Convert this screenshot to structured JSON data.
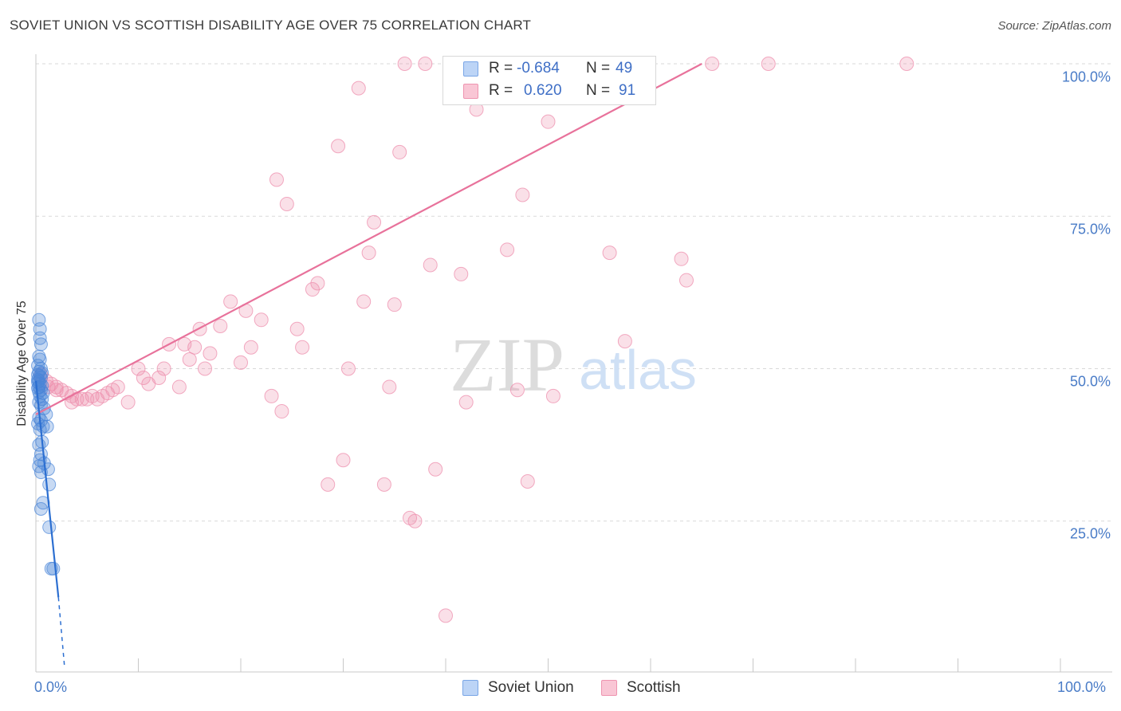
{
  "title": "SOVIET UNION VS SCOTTISH DISABILITY AGE OVER 75 CORRELATION CHART",
  "source": "Source: ZipAtlas.com",
  "watermark": {
    "zip": "ZIP",
    "atlas": "atlas"
  },
  "legend_top": {
    "rows": [
      {
        "r_label": "R =",
        "r_value": "-0.684",
        "n_label": "N =",
        "n_value": "49",
        "color": "#7aa6e6"
      },
      {
        "r_label": "R =",
        "r_value": "0.620",
        "n_label": "N =",
        "n_value": "91",
        "color": "#ee94b0"
      }
    ]
  },
  "legend_bottom": {
    "series1": "Soviet Union",
    "series2": "Scottish"
  },
  "chart_data": {
    "type": "scatter",
    "ylabel": "Disability Age Over 75",
    "xlabel": "",
    "x_tick_labels": {
      "left": "0.0%",
      "right": "100.0%"
    },
    "y_tick_labels": [
      "100.0%",
      "75.0%",
      "50.0%",
      "25.0%"
    ],
    "xlim": [
      0,
      100
    ],
    "ylim": [
      0,
      100
    ],
    "grid": true,
    "colors": {
      "soviet": "#4a86d8",
      "scottish": "#ee8fad",
      "soviet_line": "#2c6fd1",
      "scottish_line": "#e8729b",
      "tick": "#4a7cc7"
    },
    "series": [
      {
        "name": "Soviet Union",
        "trend": {
          "x0": 0,
          "y0": 48.0,
          "x1": 2.2,
          "y1": 12.5,
          "dash_to_x": 2.8,
          "dash_to_y": 1.0
        },
        "points": [
          [
            0.3,
            58.0
          ],
          [
            0.4,
            56.5
          ],
          [
            0.4,
            55.0
          ],
          [
            0.5,
            54.0
          ],
          [
            0.3,
            52.0
          ],
          [
            0.4,
            51.5
          ],
          [
            0.2,
            50.5
          ],
          [
            0.5,
            50.0
          ],
          [
            0.3,
            49.5
          ],
          [
            0.2,
            49.0
          ],
          [
            0.4,
            48.8
          ],
          [
            0.5,
            48.5
          ],
          [
            0.3,
            48.0
          ],
          [
            0.2,
            47.8
          ],
          [
            0.4,
            47.5
          ],
          [
            0.6,
            47.2
          ],
          [
            0.3,
            47.0
          ],
          [
            0.2,
            46.8
          ],
          [
            0.5,
            46.5
          ],
          [
            0.3,
            46.2
          ],
          [
            0.7,
            46.0
          ],
          [
            0.4,
            45.5
          ],
          [
            0.6,
            45.0
          ],
          [
            0.3,
            44.5
          ],
          [
            0.5,
            44.0
          ],
          [
            0.8,
            43.5
          ],
          [
            1.0,
            42.5
          ],
          [
            0.3,
            42.0
          ],
          [
            0.5,
            41.5
          ],
          [
            0.2,
            41.0
          ],
          [
            0.7,
            40.5
          ],
          [
            1.1,
            40.5
          ],
          [
            0.4,
            40.0
          ],
          [
            0.6,
            38.0
          ],
          [
            0.3,
            37.5
          ],
          [
            0.5,
            36.0
          ],
          [
            0.4,
            35.0
          ],
          [
            0.8,
            34.5
          ],
          [
            0.3,
            34.0
          ],
          [
            1.2,
            33.5
          ],
          [
            0.5,
            33.0
          ],
          [
            1.3,
            31.0
          ],
          [
            0.7,
            28.0
          ],
          [
            0.5,
            27.0
          ],
          [
            1.3,
            24.0
          ],
          [
            1.5,
            17.2
          ],
          [
            1.7,
            17.2
          ],
          [
            0.2,
            48.2
          ],
          [
            0.6,
            49.3
          ]
        ]
      },
      {
        "name": "Scottish",
        "trend": {
          "x0": 0,
          "y0": 42.5,
          "x1": 65.0,
          "y1": 100.0
        },
        "points": [
          [
            0.5,
            49.0
          ],
          [
            1.0,
            48.0
          ],
          [
            1.5,
            47.5
          ],
          [
            2.0,
            47.0
          ],
          [
            2.5,
            46.5
          ],
          [
            3.0,
            46.0
          ],
          [
            3.5,
            45.5
          ],
          [
            4.0,
            45.0
          ],
          [
            5.0,
            45.0
          ],
          [
            5.5,
            45.5
          ],
          [
            6.5,
            45.5
          ],
          [
            7.0,
            46.0
          ],
          [
            7.5,
            46.5
          ],
          [
            8.0,
            47.0
          ],
          [
            9.0,
            44.5
          ],
          [
            10.0,
            50.0
          ],
          [
            10.5,
            48.5
          ],
          [
            11.0,
            47.5
          ],
          [
            12.0,
            48.5
          ],
          [
            12.5,
            50.0
          ],
          [
            13.0,
            54.0
          ],
          [
            14.0,
            47.0
          ],
          [
            14.5,
            54.0
          ],
          [
            15.0,
            51.5
          ],
          [
            15.5,
            53.5
          ],
          [
            16.0,
            56.5
          ],
          [
            16.5,
            50.0
          ],
          [
            17.0,
            52.5
          ],
          [
            18.0,
            57.0
          ],
          [
            19.0,
            61.0
          ],
          [
            20.0,
            51.0
          ],
          [
            20.5,
            59.5
          ],
          [
            21.0,
            53.5
          ],
          [
            22.0,
            58.0
          ],
          [
            23.0,
            45.5
          ],
          [
            23.5,
            81.0
          ],
          [
            24.0,
            43.0
          ],
          [
            24.5,
            77.0
          ],
          [
            25.5,
            56.5
          ],
          [
            26.0,
            53.5
          ],
          [
            27.0,
            63.0
          ],
          [
            27.5,
            64.0
          ],
          [
            28.5,
            31.0
          ],
          [
            29.5,
            86.5
          ],
          [
            30.0,
            35.0
          ],
          [
            30.5,
            50.0
          ],
          [
            31.5,
            96.0
          ],
          [
            32.0,
            61.0
          ],
          [
            32.5,
            69.0
          ],
          [
            33.0,
            74.0
          ],
          [
            34.0,
            31.0
          ],
          [
            34.5,
            47.0
          ],
          [
            35.0,
            60.5
          ],
          [
            35.5,
            85.5
          ],
          [
            36.0,
            100.0
          ],
          [
            36.5,
            25.5
          ],
          [
            37.0,
            25.0
          ],
          [
            38.0,
            100.0
          ],
          [
            38.5,
            67.0
          ],
          [
            39.0,
            33.5
          ],
          [
            40.0,
            9.5
          ],
          [
            41.5,
            65.5
          ],
          [
            42.0,
            44.5
          ],
          [
            43.0,
            92.5
          ],
          [
            43.5,
            100.0
          ],
          [
            44.0,
            100.0
          ],
          [
            44.5,
            100.0
          ],
          [
            45.0,
            95.0
          ],
          [
            46.0,
            69.5
          ],
          [
            47.0,
            46.5
          ],
          [
            47.5,
            78.5
          ],
          [
            48.0,
            31.5
          ],
          [
            49.0,
            100.0
          ],
          [
            50.0,
            90.5
          ],
          [
            50.5,
            45.5
          ],
          [
            52.0,
            100.0
          ],
          [
            53.5,
            100.0
          ],
          [
            56.0,
            69.0
          ],
          [
            57.0,
            100.0
          ],
          [
            57.5,
            54.5
          ],
          [
            59.0,
            100.0
          ],
          [
            63.0,
            68.0
          ],
          [
            63.5,
            64.5
          ],
          [
            66.0,
            100.0
          ],
          [
            71.5,
            100.0
          ],
          [
            85.0,
            100.0
          ],
          [
            2.0,
            46.5
          ],
          [
            3.5,
            44.5
          ],
          [
            4.5,
            45.0
          ],
          [
            6.0,
            45.0
          ],
          [
            1.2,
            47.0
          ]
        ]
      }
    ]
  }
}
